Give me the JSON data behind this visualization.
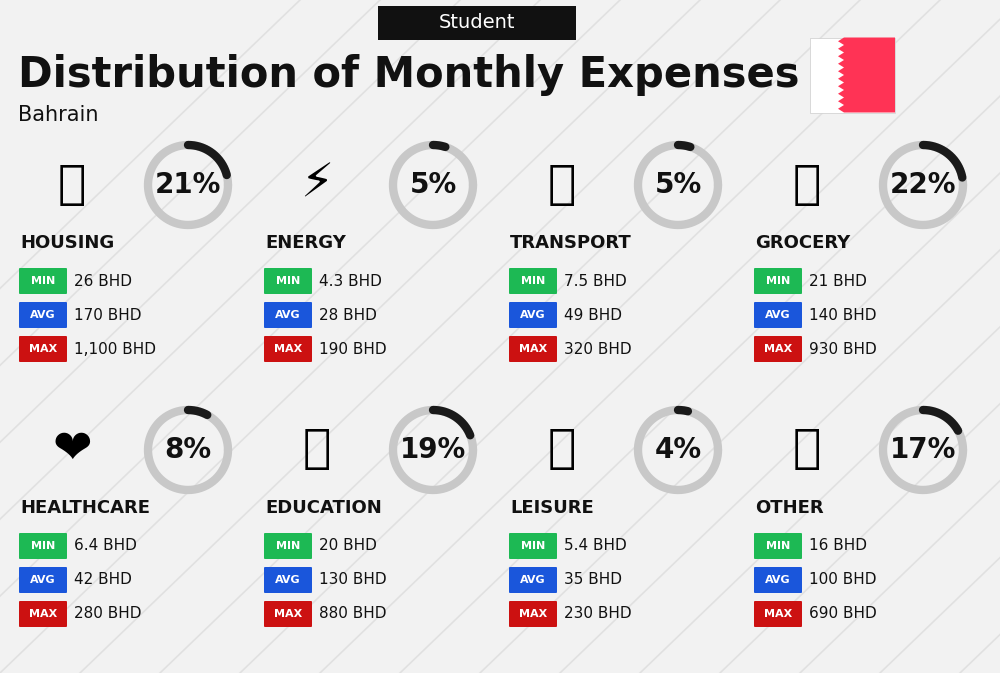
{
  "title": "Distribution of Monthly Expenses",
  "subtitle": "Bahrain",
  "top_label": "Student",
  "background_color": "#f2f2f2",
  "categories": [
    {
      "name": "HOUSING",
      "percent": 21,
      "min_val": "26 BHD",
      "avg_val": "170 BHD",
      "max_val": "1,100 BHD",
      "col": 0,
      "row": 0,
      "icon": "🏢"
    },
    {
      "name": "ENERGY",
      "percent": 5,
      "min_val": "4.3 BHD",
      "avg_val": "28 BHD",
      "max_val": "190 BHD",
      "col": 1,
      "row": 0,
      "icon": "⚡"
    },
    {
      "name": "TRANSPORT",
      "percent": 5,
      "min_val": "7.5 BHD",
      "avg_val": "49 BHD",
      "max_val": "320 BHD",
      "col": 2,
      "row": 0,
      "icon": "🚌"
    },
    {
      "name": "GROCERY",
      "percent": 22,
      "min_val": "21 BHD",
      "avg_val": "140 BHD",
      "max_val": "930 BHD",
      "col": 3,
      "row": 0,
      "icon": "🛍"
    },
    {
      "name": "HEALTHCARE",
      "percent": 8,
      "min_val": "6.4 BHD",
      "avg_val": "42 BHD",
      "max_val": "280 BHD",
      "col": 0,
      "row": 1,
      "icon": "❤"
    },
    {
      "name": "EDUCATION",
      "percent": 19,
      "min_val": "20 BHD",
      "avg_val": "130 BHD",
      "max_val": "880 BHD",
      "col": 1,
      "row": 1,
      "icon": "🎓"
    },
    {
      "name": "LEISURE",
      "percent": 4,
      "min_val": "5.4 BHD",
      "avg_val": "35 BHD",
      "max_val": "230 BHD",
      "col": 2,
      "row": 1,
      "icon": "🛍"
    },
    {
      "name": "OTHER",
      "percent": 17,
      "min_val": "16 BHD",
      "avg_val": "100 BHD",
      "max_val": "690 BHD",
      "col": 3,
      "row": 1,
      "icon": "💰"
    }
  ],
  "min_color": "#1db954",
  "avg_color": "#1a56db",
  "max_color": "#cc1111",
  "badge_text_color": "#ffffff",
  "arc_dark_color": "#1a1a1a",
  "arc_light_color": "#c8c8c8",
  "flag_red": "#ff3355",
  "title_fontsize": 30,
  "subtitle_fontsize": 15,
  "percent_fontsize": 20,
  "cat_name_fontsize": 13,
  "badge_label_fontsize": 8,
  "value_fontsize": 11
}
